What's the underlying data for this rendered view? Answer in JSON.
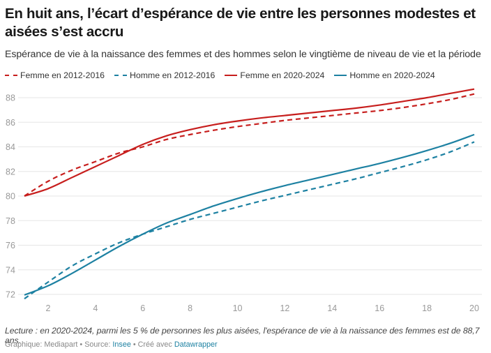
{
  "chart_data": {
    "type": "line",
    "title": "En huit ans, l’écart d’espérance de vie entre les personnes modestes et aisées s’est accru",
    "subtitle": "Espérance de vie à la naissance des femmes et des hommes selon le vingtième de niveau de vie et la période",
    "xlabel": "",
    "ylabel": "",
    "x": [
      1,
      2,
      3,
      4,
      5,
      6,
      7,
      8,
      9,
      10,
      11,
      12,
      13,
      14,
      15,
      16,
      17,
      18,
      19,
      20
    ],
    "x_ticks": [
      "2",
      "4",
      "6",
      "8",
      "10",
      "12",
      "14",
      "16",
      "18",
      "20"
    ],
    "x_tick_values": [
      2,
      4,
      6,
      8,
      10,
      12,
      14,
      16,
      18,
      20
    ],
    "xlim": [
      1,
      20
    ],
    "y_ticks": [
      "72",
      "74",
      "76",
      "78",
      "80",
      "82",
      "84",
      "86",
      "88"
    ],
    "y_tick_values": [
      72,
      74,
      76,
      78,
      80,
      82,
      84,
      86,
      88
    ],
    "ylim": [
      72,
      88
    ],
    "grid": true,
    "legend_position": "top-left",
    "series": [
      {
        "name": "Femme en 2012-2016",
        "color": "#c71e1d",
        "dashed": true,
        "values": [
          80.0,
          81.2,
          82.1,
          82.8,
          83.5,
          84.0,
          84.6,
          85.0,
          85.35,
          85.65,
          85.9,
          86.15,
          86.35,
          86.55,
          86.75,
          86.95,
          87.2,
          87.5,
          87.85,
          88.3
        ]
      },
      {
        "name": "Homme en 2012-2016",
        "color": "#1d81a2",
        "dashed": true,
        "values": [
          71.65,
          73.0,
          74.3,
          75.3,
          76.2,
          76.9,
          77.5,
          78.1,
          78.6,
          79.1,
          79.6,
          80.05,
          80.5,
          80.95,
          81.4,
          81.9,
          82.4,
          82.95,
          83.6,
          84.4
        ]
      },
      {
        "name": "Femme en 2020-2024",
        "color": "#c71e1d",
        "dashed": false,
        "values": [
          80.0,
          80.6,
          81.5,
          82.4,
          83.3,
          84.2,
          84.9,
          85.4,
          85.8,
          86.1,
          86.35,
          86.55,
          86.75,
          86.95,
          87.15,
          87.4,
          87.7,
          88.0,
          88.35,
          88.7
        ]
      },
      {
        "name": "Homme en 2020-2024",
        "color": "#1d81a2",
        "dashed": false,
        "values": [
          71.95,
          72.7,
          73.7,
          74.8,
          75.9,
          76.9,
          77.8,
          78.5,
          79.2,
          79.8,
          80.35,
          80.85,
          81.3,
          81.75,
          82.2,
          82.65,
          83.15,
          83.7,
          84.3,
          85.0
        ]
      }
    ],
    "annotation": "Lecture : en 2020-2024, parmi les 5 % de personnes les plus aisées, l'espérance de vie à la naissance des femmes est de 88,7 ans."
  },
  "footer": {
    "prefix": "Graphique: Mediapart • Source: ",
    "source_link": "Insee",
    "middle": " • Créé avec ",
    "tool_link": "Datawrapper"
  }
}
